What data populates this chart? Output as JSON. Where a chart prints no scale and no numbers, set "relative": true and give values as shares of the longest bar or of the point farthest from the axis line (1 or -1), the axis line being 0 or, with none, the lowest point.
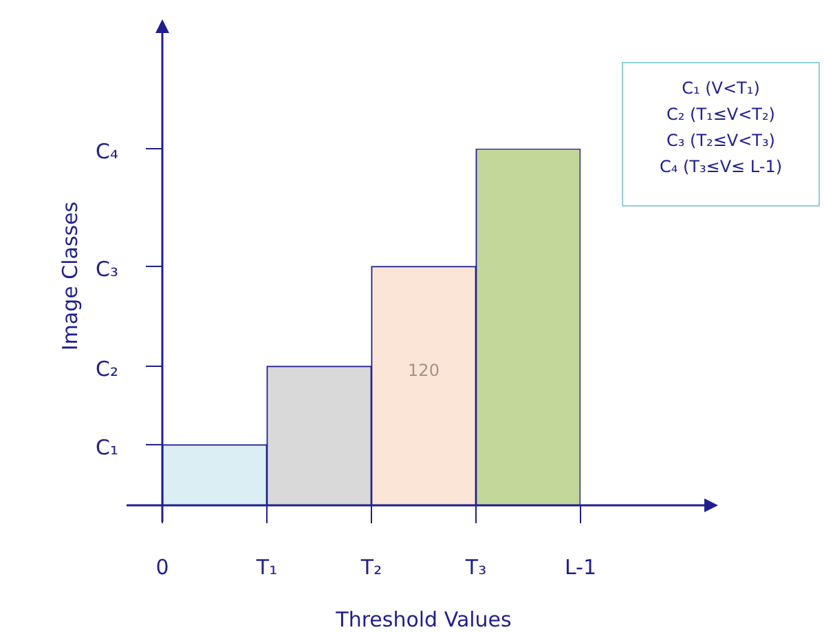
{
  "chart_data": {
    "type": "bar",
    "relative": true,
    "xlabel": "Threshold Values",
    "ylabel": "Image Classes",
    "categories": [
      null,
      null,
      null,
      null
    ],
    "values": [
      0.17,
      0.39,
      0.67,
      1
    ],
    "colors": [
      "#daeef3",
      "#d9d9d9",
      "#fbe5d6",
      "#c4d79b"
    ],
    "annotations": [
      "0",
      "T₁",
      "T₂",
      "T₃",
      "L-1",
      "C₁",
      "C₂",
      "C₃",
      "C₄",
      "120",
      "C₁ (V<T₁)",
      "C₂ (T₁≤V<T₂)",
      "C₃ (T₂≤V<T₃)",
      "C₄ (T₃≤V≤ L-1)"
    ]
  }
}
